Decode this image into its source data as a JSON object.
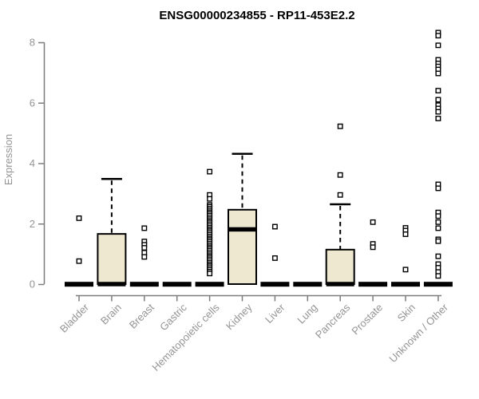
{
  "chart_data": {
    "type": "boxplot",
    "title": "ENSG00000234855 - RP11-453E2.2",
    "xlabel": "",
    "ylabel": "Expression",
    "ylim": [
      0,
      8.4
    ],
    "yticks": [
      0,
      2,
      4,
      6,
      8
    ],
    "grid": false,
    "legend": "none",
    "categories": [
      "Bladder",
      "Brain",
      "Breast",
      "Gastric",
      "Hematopoietic cells",
      "Kidney",
      "Liver",
      "Lung",
      "Pancreas",
      "Prostate",
      "Skin",
      "Unknown / Other"
    ],
    "series": [
      {
        "category": "Bladder",
        "q1": 0,
        "median": 0,
        "q3": 0,
        "whisker_low": 0,
        "whisker_high": 0,
        "outliers": [
          2.18,
          0.76
        ]
      },
      {
        "category": "Brain",
        "q1": 0,
        "median": 0,
        "q3": 1.66,
        "whisker_low": 0,
        "whisker_high": 3.48,
        "outliers": []
      },
      {
        "category": "Breast",
        "q1": 0,
        "median": 0,
        "q3": 0,
        "whisker_low": 0,
        "whisker_high": 0,
        "outliers": [
          1.85,
          1.41,
          1.3,
          1.2,
          1.04,
          0.9
        ]
      },
      {
        "category": "Gastric",
        "q1": 0,
        "median": 0,
        "q3": 0,
        "whisker_low": 0,
        "whisker_high": 0,
        "outliers": []
      },
      {
        "category": "Hematopoietic cells",
        "q1": 0,
        "median": 0,
        "q3": 0,
        "whisker_low": 0,
        "whisker_high": 0,
        "outliers": [
          3.72,
          2.95,
          2.82,
          2.62,
          2.56,
          2.5,
          2.44,
          2.38,
          2.33,
          2.27,
          2.21,
          2.15,
          2.09,
          2.04,
          1.98,
          1.92,
          1.86,
          1.8,
          1.75,
          1.69,
          1.63,
          1.57,
          1.51,
          1.46,
          1.4,
          1.34,
          1.28,
          1.22,
          1.17,
          1.11,
          1.05,
          0.99,
          0.93,
          0.88,
          0.82,
          0.76,
          0.7,
          0.64,
          0.59,
          0.53,
          0.47,
          0.41,
          0.35
        ]
      },
      {
        "category": "Kidney",
        "q1": 0,
        "median": 1.81,
        "q3": 2.46,
        "whisker_low": 0,
        "whisker_high": 4.31,
        "outliers": []
      },
      {
        "category": "Liver",
        "q1": 0,
        "median": 0,
        "q3": 0,
        "whisker_low": 0,
        "whisker_high": 0,
        "outliers": [
          1.9,
          0.86
        ]
      },
      {
        "category": "Lung",
        "q1": 0,
        "median": 0,
        "q3": 0,
        "whisker_low": 0,
        "whisker_high": 0,
        "outliers": []
      },
      {
        "category": "Pancreas",
        "q1": 0,
        "median": 0,
        "q3": 1.14,
        "whisker_low": 0,
        "whisker_high": 2.64,
        "outliers": [
          5.22,
          3.61,
          2.95
        ]
      },
      {
        "category": "Prostate",
        "q1": 0,
        "median": 0,
        "q3": 0,
        "whisker_low": 0,
        "whisker_high": 0,
        "outliers": [
          2.05,
          1.33,
          1.22
        ]
      },
      {
        "category": "Skin",
        "q1": 0,
        "median": 0,
        "q3": 0,
        "whisker_low": 0,
        "whisker_high": 0,
        "outliers": [
          1.86,
          1.77,
          1.65,
          0.48
        ]
      },
      {
        "category": "Unknown / Other",
        "q1": 0,
        "median": 0,
        "q3": 0,
        "whisker_low": 0,
        "whisker_high": 0,
        "outliers": [
          8.32,
          8.22,
          7.9,
          7.42,
          7.3,
          7.2,
          7.1,
          6.97,
          6.4,
          6.1,
          5.92,
          5.81,
          5.7,
          5.48,
          3.3,
          3.17,
          2.37,
          2.25,
          2.05,
          1.85,
          1.48,
          1.42,
          0.92,
          0.66,
          0.54,
          0.4,
          0.27
        ]
      }
    ],
    "colors": {
      "background": "#FFFFFF",
      "box_fill": "#EEE8D0",
      "box_stroke": "#000000",
      "median": "#000000",
      "outlier_stroke": "#000000",
      "axis_line": "#7D7D7D",
      "tick_text": "#949494",
      "title_text": "#000000"
    }
  }
}
